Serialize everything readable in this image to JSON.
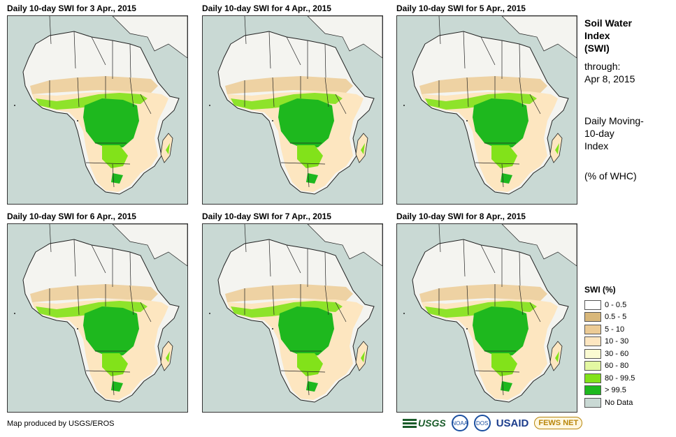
{
  "panels": [
    {
      "title": "Daily 10-day  SWI for 3 Apr., 2015"
    },
    {
      "title": "Daily 10-day  SWI for 4 Apr., 2015"
    },
    {
      "title": "Daily 10-day  SWI for 5 Apr., 2015"
    },
    {
      "title": "Daily 10-day  SWI for 6 Apr., 2015"
    },
    {
      "title": "Daily 10-day  SWI for 7 Apr., 2015"
    },
    {
      "title": "Daily 10-day  SWI for 8 Apr., 2015"
    }
  ],
  "side": {
    "heading_1": "Soil Water",
    "heading_2": "Index",
    "heading_3": "(SWI)",
    "through_label": "through:",
    "through_date": "Apr 8, 2015",
    "desc_1": "Daily Moving-",
    "desc_2": "10-day",
    "desc_3": "Index",
    "units": "(% of WHC)"
  },
  "legend": {
    "title": "SWI (%)",
    "items": [
      {
        "label": "0 - 0.5",
        "color": "#ffffff"
      },
      {
        "label": "0.5 - 5",
        "color": "#d8b77a"
      },
      {
        "label": "5 - 10",
        "color": "#eccb95"
      },
      {
        "label": "10 - 30",
        "color": "#fde6c0"
      },
      {
        "label": "30 - 60",
        "color": "#fbfbd2"
      },
      {
        "label": "60 - 80",
        "color": "#e3f8a2"
      },
      {
        "label": "80 - 99.5",
        "color": "#82e21a"
      },
      {
        "label": "> 99.5",
        "color": "#1eb81e"
      },
      {
        "label": "No Data",
        "color": "#c9d9d4"
      }
    ]
  },
  "colors": {
    "ocean": "#c9d9d4",
    "desert": "#f4f4f0",
    "sahel": "#eccb95",
    "savanna": "#fde6c0",
    "wet": "#82e21a",
    "saturated": "#1eb81e"
  },
  "credit": "Map produced by USGS/EROS",
  "logos": {
    "usgs": "USGS",
    "noaa": "NOAA",
    "dept": "DOS",
    "usaid": "USAID",
    "fews": "FEWS NET"
  }
}
